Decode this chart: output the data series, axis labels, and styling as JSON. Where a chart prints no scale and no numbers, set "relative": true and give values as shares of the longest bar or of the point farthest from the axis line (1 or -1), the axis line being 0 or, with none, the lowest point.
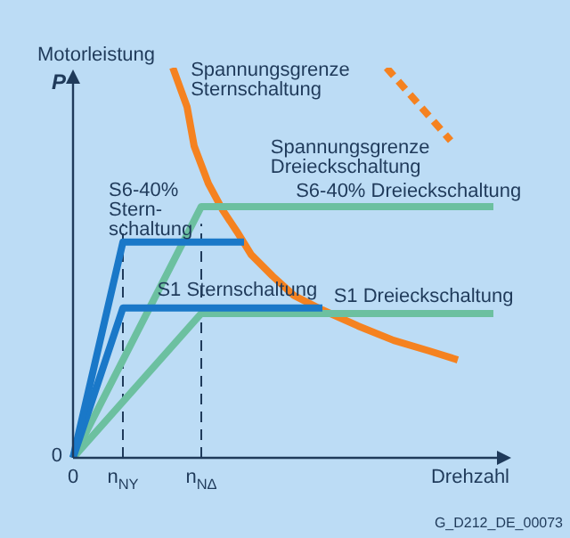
{
  "chart_data": {
    "type": "line",
    "relative": true,
    "ylabel": "P",
    "xlabel": "Drehzahl",
    "legend": false,
    "marker": "none",
    "categories": [
      "0",
      null,
      null,
      null,
      null,
      null,
      null,
      "n$_{NY}$",
      null,
      null,
      null,
      null,
      null,
      null,
      null,
      null,
      null,
      null,
      "n$_{NΔ}$",
      null,
      null,
      null,
      null,
      null,
      null,
      null,
      null,
      null,
      null,
      null,
      null,
      null,
      null,
      null,
      null,
      null,
      null,
      null,
      null,
      null,
      null,
      null,
      null,
      null,
      null,
      null,
      null,
      null,
      null,
      null,
      null,
      null,
      null,
      null,
      null,
      null,
      null,
      null,
      null,
      null
    ],
    "ref_lines": [
      {
        "axis": "x",
        "value": "n$_{NY}$",
        "line_style": "dashed",
        "color": "#1f3a5a"
      },
      {
        "axis": "x",
        "value": "n$_{NΔ}$",
        "line_style": "dashed",
        "color": "#1f3a5a"
      }
    ],
    "annotations": [
      "Motorleistung",
      "0",
      "G_D212_DE_00073"
    ],
    "series": [
      {
        "name": "S6-40% Stern-schaltung",
        "color": "#1a78c8",
        "values": [
          0,
          null,
          null,
          null,
          null,
          null,
          null,
          0.553,
          null,
          null,
          null,
          null,
          null,
          null,
          null,
          null,
          null,
          null,
          null,
          null,
          null,
          null,
          null,
          null,
          0.553,
          null,
          null,
          null,
          null,
          null,
          null,
          null,
          null,
          null,
          null,
          null,
          null,
          null,
          null,
          null,
          null,
          null,
          null,
          null,
          null,
          null,
          null,
          null,
          null,
          null,
          null,
          null,
          null,
          null,
          null,
          null,
          null,
          null,
          null,
          null
        ]
      },
      {
        "name": "S1 Sternschaltung",
        "color": "#1a78c8",
        "values": [
          0,
          null,
          null,
          null,
          null,
          null,
          null,
          0.384,
          null,
          null,
          null,
          null,
          null,
          null,
          null,
          null,
          null,
          null,
          null,
          null,
          null,
          null,
          null,
          null,
          null,
          null,
          null,
          null,
          null,
          null,
          null,
          null,
          null,
          null,
          null,
          0.384,
          null,
          null,
          null,
          null,
          null,
          null,
          null,
          null,
          null,
          null,
          null,
          null,
          null,
          null,
          null,
          null,
          null,
          null,
          null,
          null,
          null,
          null,
          null,
          null
        ]
      },
      {
        "name": "S6-40% Dreieckschaltung",
        "color": "#6cc0a0",
        "values": [
          0,
          null,
          null,
          null,
          null,
          null,
          null,
          null,
          null,
          null,
          null,
          null,
          null,
          null,
          null,
          null,
          null,
          null,
          0.644,
          null,
          null,
          null,
          null,
          null,
          null,
          null,
          null,
          null,
          null,
          null,
          null,
          null,
          null,
          null,
          null,
          null,
          null,
          null,
          null,
          null,
          null,
          null,
          null,
          null,
          null,
          null,
          null,
          null,
          null,
          null,
          null,
          null,
          null,
          null,
          null,
          null,
          null,
          null,
          null,
          0.644
        ]
      },
      {
        "name": "S1 Dreieckschaltung",
        "color": "#6cc0a0",
        "values": [
          0,
          null,
          null,
          null,
          null,
          null,
          null,
          null,
          null,
          null,
          null,
          null,
          null,
          null,
          null,
          null,
          null,
          null,
          0.37,
          null,
          null,
          null,
          null,
          null,
          null,
          null,
          null,
          null,
          null,
          null,
          null,
          null,
          null,
          null,
          null,
          null,
          null,
          null,
          null,
          null,
          null,
          null,
          null,
          null,
          null,
          null,
          null,
          null,
          null,
          null,
          null,
          null,
          null,
          null,
          null,
          null,
          null,
          null,
          null,
          0.37
        ]
      },
      {
        "name": "Spannungsgrenze Sternschaltung",
        "color": "#f58220",
        "values": [
          null,
          null,
          null,
          null,
          null,
          null,
          null,
          null,
          null,
          null,
          null,
          null,
          null,
          null,
          1,
          null,
          0.9,
          0.799,
          null,
          0.703,
          null,
          0.635,
          null,
          0.58,
          null,
          0.521,
          null,
          null,
          0.466,
          null,
          null,
          0.416,
          null,
          null,
          null,
          0.379,
          null,
          null,
          null,
          null,
          0.338,
          null,
          null,
          null,
          null,
          0.301,
          null,
          null,
          null,
          null,
          0.274,
          null,
          null,
          null,
          0.251,
          null,
          null,
          null,
          null,
          null
        ]
      },
      {
        "name": "Spannungsgrenze Dreieckschaltung",
        "color": "#f58220",
        "line_style": "dashed",
        "values": [
          null,
          null,
          null,
          null,
          null,
          null,
          null,
          null,
          null,
          null,
          null,
          null,
          null,
          null,
          null,
          null,
          null,
          null,
          null,
          null,
          null,
          null,
          null,
          null,
          null,
          null,
          null,
          null,
          null,
          null,
          null,
          null,
          null,
          null,
          null,
          null,
          null,
          null,
          null,
          null,
          null,
          null,
          null,
          null,
          1,
          null,
          null,
          null,
          null,
          null,
          null,
          null,
          null,
          0.813,
          null,
          null,
          null,
          null,
          null,
          null
        ]
      }
    ]
  }
}
